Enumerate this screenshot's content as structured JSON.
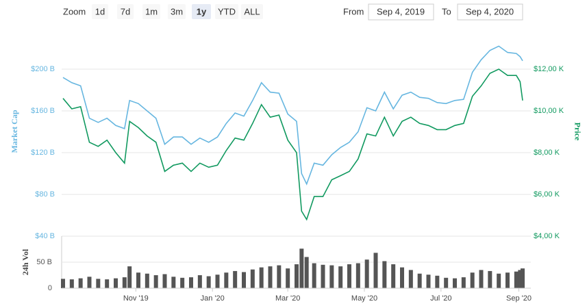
{
  "toolbar": {
    "zoom_label": "Zoom",
    "buttons": [
      "1d",
      "7d",
      "1m",
      "3m",
      "1y",
      "YTD",
      "ALL"
    ],
    "selected": 4,
    "from_label": "From",
    "from": "Sep 4, 2019",
    "to_label": "To",
    "to": "Sep 4, 2020"
  },
  "chart_data": [
    {
      "type": "line",
      "ylabel": "Market Cap",
      "y2label": "Price",
      "x": [
        "2019-09-04",
        "2019-09-11",
        "2019-09-18",
        "2019-09-25",
        "2019-10-02",
        "2019-10-09",
        "2019-10-16",
        "2019-10-23",
        "2019-10-27",
        "2019-11-03",
        "2019-11-10",
        "2019-11-17",
        "2019-11-24",
        "2019-12-01",
        "2019-12-08",
        "2019-12-15",
        "2019-12-22",
        "2019-12-29",
        "2020-01-05",
        "2020-01-12",
        "2020-01-19",
        "2020-01-26",
        "2020-02-02",
        "2020-02-09",
        "2020-02-16",
        "2020-02-23",
        "2020-03-01",
        "2020-03-08",
        "2020-03-12",
        "2020-03-16",
        "2020-03-22",
        "2020-03-29",
        "2020-04-05",
        "2020-04-12",
        "2020-04-19",
        "2020-04-26",
        "2020-05-03",
        "2020-05-10",
        "2020-05-17",
        "2020-05-24",
        "2020-05-31",
        "2020-06-07",
        "2020-06-14",
        "2020-06-21",
        "2020-06-28",
        "2020-07-05",
        "2020-07-12",
        "2020-07-19",
        "2020-07-26",
        "2020-08-02",
        "2020-08-09",
        "2020-08-16",
        "2020-08-23",
        "2020-08-30",
        "2020-09-02",
        "2020-09-04"
      ],
      "series": [
        {
          "color": "#66b6e0",
          "values": [
            192,
            187,
            184,
            153,
            149,
            153,
            146,
            143,
            170,
            167,
            160,
            153,
            128,
            135,
            135,
            128,
            134,
            130,
            135,
            148,
            158,
            155,
            170,
            187,
            178,
            177,
            157,
            150,
            100,
            90,
            110,
            108,
            118,
            125,
            130,
            140,
            163,
            160,
            178,
            162,
            175,
            178,
            173,
            172,
            168,
            167,
            170,
            171,
            197,
            209,
            218,
            222,
            216,
            215,
            212,
            208
          ]
        },
        {
          "color": "#10995f",
          "axis": "y2",
          "values": [
            10600,
            10100,
            10200,
            8500,
            8300,
            8600,
            8000,
            7500,
            9500,
            9200,
            8800,
            8500,
            7100,
            7400,
            7500,
            7100,
            7500,
            7300,
            7400,
            8100,
            8700,
            8600,
            9400,
            10300,
            9700,
            9800,
            8600,
            8000,
            5200,
            4800,
            5900,
            5900,
            6700,
            6900,
            7100,
            7700,
            8900,
            8800,
            9700,
            8800,
            9500,
            9700,
            9400,
            9300,
            9100,
            9100,
            9300,
            9400,
            10700,
            11200,
            11800,
            12000,
            11700,
            11700,
            11400,
            10500
          ]
        }
      ],
      "xlim": [
        "2019-09-04",
        "2020-09-04"
      ],
      "ylim": [
        40,
        240
      ],
      "yticks": [
        {
          "value": 40,
          "label": "$40 B"
        },
        {
          "value": 80,
          "label": "$80 B"
        },
        {
          "value": 120,
          "label": "$120 B"
        },
        {
          "value": 160,
          "label": "$160 B"
        },
        {
          "value": 200,
          "label": "$200 B"
        }
      ],
      "y2lim": [
        4000,
        14000
      ],
      "y2ticks": [
        {
          "value": 4000,
          "label": "$4,00 K"
        },
        {
          "value": 6000,
          "label": "$6,00 K"
        },
        {
          "value": 8000,
          "label": "$8,00 K"
        },
        {
          "value": 10000,
          "label": "$10,00 K"
        },
        {
          "value": 12000,
          "label": "$12,00 K"
        }
      ],
      "grid": true
    },
    {
      "type": "bar",
      "ylabel": "24h Vol",
      "color": "#555555",
      "x": [
        "2019-09-04",
        "2019-09-11",
        "2019-09-18",
        "2019-09-25",
        "2019-10-02",
        "2019-10-09",
        "2019-10-16",
        "2019-10-23",
        "2019-10-27",
        "2019-11-03",
        "2019-11-10",
        "2019-11-17",
        "2019-11-24",
        "2019-12-01",
        "2019-12-08",
        "2019-12-15",
        "2019-12-22",
        "2019-12-29",
        "2020-01-05",
        "2020-01-12",
        "2020-01-19",
        "2020-01-26",
        "2020-02-02",
        "2020-02-09",
        "2020-02-16",
        "2020-02-23",
        "2020-03-01",
        "2020-03-08",
        "2020-03-12",
        "2020-03-16",
        "2020-03-22",
        "2020-03-29",
        "2020-04-05",
        "2020-04-12",
        "2020-04-19",
        "2020-04-26",
        "2020-05-03",
        "2020-05-10",
        "2020-05-17",
        "2020-05-24",
        "2020-05-31",
        "2020-06-07",
        "2020-06-14",
        "2020-06-21",
        "2020-06-28",
        "2020-07-05",
        "2020-07-12",
        "2020-07-19",
        "2020-07-26",
        "2020-08-02",
        "2020-08-09",
        "2020-08-16",
        "2020-08-23",
        "2020-08-30",
        "2020-09-02",
        "2020-09-04"
      ],
      "values": [
        18,
        17,
        19,
        22,
        18,
        17,
        19,
        21,
        42,
        30,
        28,
        25,
        27,
        22,
        20,
        21,
        25,
        23,
        26,
        30,
        33,
        31,
        36,
        40,
        42,
        44,
        38,
        46,
        76,
        60,
        48,
        45,
        44,
        42,
        46,
        48,
        55,
        68,
        52,
        46,
        40,
        35,
        28,
        26,
        24,
        20,
        19,
        21,
        30,
        35,
        33,
        28,
        30,
        32,
        35,
        38
      ],
      "xlim": [
        "2019-09-04",
        "2020-09-04"
      ],
      "ylim": [
        0,
        100
      ],
      "yticks": [
        0,
        {
          "value": 50,
          "label": "50 B"
        }
      ],
      "xticks": [
        {
          "value": "2019-11-01",
          "label": "Nov '19"
        },
        {
          "value": "2020-01-01",
          "label": "Jan '20"
        },
        {
          "value": "2020-03-01",
          "label": "Mar '20"
        },
        {
          "value": "2020-05-01",
          "label": "May '20"
        },
        {
          "value": "2020-07-01",
          "label": "Jul '20"
        },
        {
          "value": "2020-09-01",
          "label": "Sep '20"
        }
      ]
    }
  ]
}
